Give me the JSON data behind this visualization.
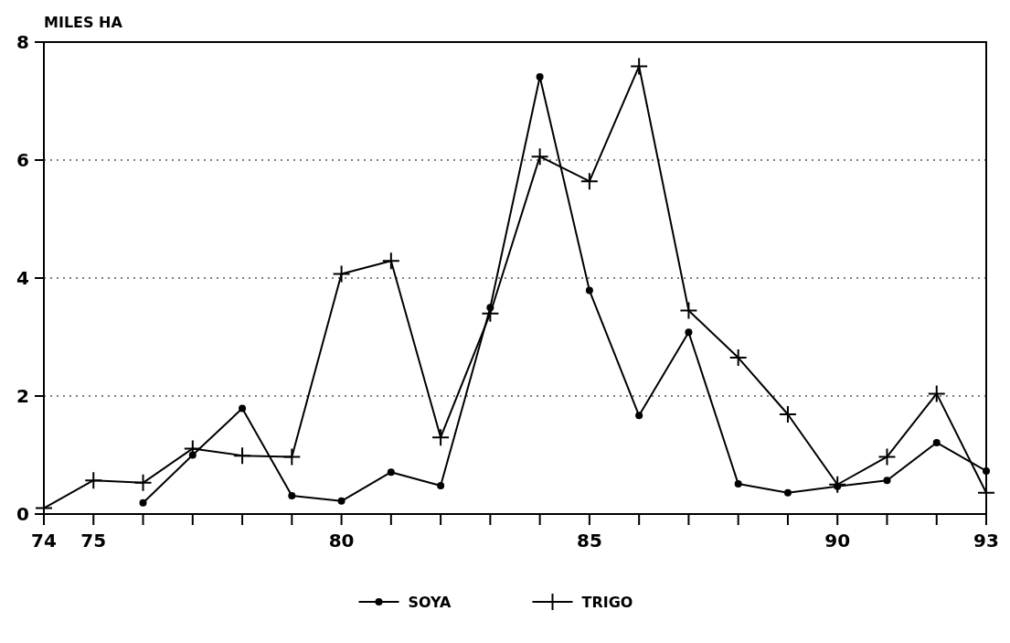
{
  "chart_data": {
    "type": "line",
    "ylabel": "MILES HA",
    "x": [
      74,
      75,
      76,
      77,
      78,
      79,
      80,
      81,
      82,
      83,
      84,
      85,
      86,
      87,
      88,
      89,
      90,
      91,
      92,
      93
    ],
    "series": [
      {
        "name": "SOYA",
        "color": "#000000",
        "marker": "circle",
        "values": [
          null,
          null,
          0.19,
          1.0,
          1.79,
          0.31,
          0.22,
          0.71,
          0.48,
          3.5,
          7.41,
          3.79,
          1.67,
          3.08,
          0.51,
          0.36,
          0.47,
          0.57,
          1.21,
          0.73
        ]
      },
      {
        "name": "TRIGO",
        "color": "#000000",
        "marker": "cross",
        "values": [
          0.1,
          0.57,
          0.53,
          1.11,
          0.99,
          0.97,
          4.07,
          4.29,
          1.3,
          3.4,
          6.06,
          5.64,
          7.59,
          3.45,
          2.65,
          1.69,
          0.5,
          0.97,
          2.04,
          0.36
        ]
      }
    ],
    "xlim": [
      74,
      93
    ],
    "xticks": [
      74,
      75,
      {
        "value": 76,
        "label": null
      },
      {
        "value": 77,
        "label": null
      },
      {
        "value": 78,
        "label": null
      },
      {
        "value": 79,
        "label": null
      },
      80,
      {
        "value": 81,
        "label": null
      },
      {
        "value": 82,
        "label": null
      },
      {
        "value": 83,
        "label": null
      },
      {
        "value": 84,
        "label": null
      },
      85,
      {
        "value": 86,
        "label": null
      },
      {
        "value": 87,
        "label": null
      },
      {
        "value": 88,
        "label": null
      },
      {
        "value": 89,
        "label": null
      },
      90,
      {
        "value": 91,
        "label": null
      },
      {
        "value": 92,
        "label": null
      },
      93
    ],
    "ylim": [
      0,
      8
    ],
    "yticks": [
      0,
      2,
      4,
      6,
      8
    ],
    "grid": "y",
    "legend": "bottom",
    "line_style": "solid"
  }
}
